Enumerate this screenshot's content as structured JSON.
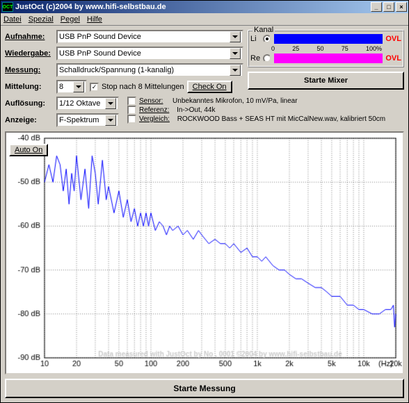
{
  "window": {
    "title": "JustOct (c)2004 by www.hifi-selbstbau.de"
  },
  "menu": {
    "items": [
      "Datei",
      "Spezial",
      "Pegel",
      "Hilfe"
    ]
  },
  "labels": {
    "aufnahme": "Aufnahme:",
    "wiedergabe": "Wiedergabe:",
    "messung": "Messung:",
    "mittelung": "Mittelung:",
    "aufloesung": "Auflösung:",
    "anzeige": "Anzeige:",
    "stopnach": "Stop nach 8 Mittelungen",
    "checkon": "Check On",
    "kanal": "Kanal",
    "li": "Li",
    "re": "Re",
    "ovl": "OVL",
    "ticks": [
      "0",
      "25",
      "50",
      "75",
      "100%"
    ],
    "starte_mixer": "Starte Mixer",
    "starte_messung": "Starte Messung",
    "auto_on": "Auto On",
    "sensor": "Sensor:",
    "sensor_v": "Unbekanntes Mikrofon, 10 mV/Pa, linear",
    "referenz": "Referenz:",
    "referenz_v": "In->Out, 44k",
    "vergleich": "Vergleich:",
    "vergleich_v": "ROCKWOOD Bass + SEAS HT mit MicCalNew.wav, kalibriert 50cm"
  },
  "combos": {
    "aufnahme": "USB PnP Sound Device",
    "wiedergabe": "USB PnP Sound Device",
    "messung": "Schalldruck/Spannung (1-kanalig)",
    "mittelung": "8",
    "aufloesung": "1/12 Oktave",
    "anzeige": "F-Spektrum"
  },
  "checks": {
    "stopnach": true
  },
  "kanal": {
    "li_selected": true,
    "li_color": "#0000ff",
    "li_pct": 100,
    "re_color": "#ff00ff",
    "re_pct": 100
  },
  "chart": {
    "type": "line",
    "bg": "#ffffff",
    "grid_color": "#000000",
    "grid_dash": [
      1,
      2
    ],
    "axis_color": "#000000",
    "line_color": "#0000ff",
    "line_width": 1,
    "watermark": "Data measured with JustOct by No , 0001 ©2004 by www.hifi-selbstbau.de",
    "watermark_color": "#cccccc",
    "y": {
      "min": -90,
      "max": -40,
      "step": 10,
      "unit": "dB"
    },
    "x": {
      "log": true,
      "min": 10,
      "max": 20000,
      "ticks": [
        10,
        20,
        50,
        100,
        200,
        500,
        1000,
        2000,
        5000,
        10000,
        20000
      ],
      "ticklabels": [
        "10",
        "20",
        "50",
        "100",
        "200",
        "500",
        "1k",
        "2k",
        "5k",
        "10k",
        "20k"
      ],
      "minor": [
        10,
        20,
        30,
        40,
        50,
        60,
        70,
        80,
        90,
        100,
        200,
        300,
        400,
        500,
        600,
        700,
        800,
        900,
        1000,
        2000,
        3000,
        4000,
        5000,
        6000,
        7000,
        8000,
        9000,
        10000,
        20000
      ],
      "unit": "(Hz)"
    },
    "data": [
      [
        10,
        -50
      ],
      [
        11,
        -46
      ],
      [
        12,
        -50
      ],
      [
        13,
        -44
      ],
      [
        14,
        -46
      ],
      [
        15,
        -52
      ],
      [
        16,
        -47
      ],
      [
        17,
        -55
      ],
      [
        18,
        -48
      ],
      [
        19,
        -52
      ],
      [
        20,
        -44
      ],
      [
        22,
        -54
      ],
      [
        24,
        -47
      ],
      [
        26,
        -56
      ],
      [
        28,
        -44
      ],
      [
        30,
        -48
      ],
      [
        32,
        -55
      ],
      [
        35,
        -45
      ],
      [
        38,
        -54
      ],
      [
        40,
        -51
      ],
      [
        45,
        -57
      ],
      [
        50,
        -52
      ],
      [
        55,
        -58
      ],
      [
        60,
        -54
      ],
      [
        65,
        -59
      ],
      [
        70,
        -56
      ],
      [
        75,
        -60
      ],
      [
        80,
        -57
      ],
      [
        85,
        -60
      ],
      [
        90,
        -57
      ],
      [
        95,
        -60
      ],
      [
        100,
        -57
      ],
      [
        110,
        -61
      ],
      [
        120,
        -59
      ],
      [
        130,
        -60
      ],
      [
        140,
        -62
      ],
      [
        150,
        -60
      ],
      [
        160,
        -61
      ],
      [
        180,
        -60
      ],
      [
        200,
        -62
      ],
      [
        220,
        -61
      ],
      [
        250,
        -63
      ],
      [
        280,
        -61
      ],
      [
        300,
        -62
      ],
      [
        350,
        -64
      ],
      [
        400,
        -63
      ],
      [
        450,
        -64
      ],
      [
        500,
        -64
      ],
      [
        550,
        -65
      ],
      [
        600,
        -64
      ],
      [
        700,
        -66
      ],
      [
        800,
        -65
      ],
      [
        900,
        -67
      ],
      [
        1000,
        -67
      ],
      [
        1100,
        -68
      ],
      [
        1200,
        -67
      ],
      [
        1400,
        -69
      ],
      [
        1600,
        -70
      ],
      [
        1800,
        -70
      ],
      [
        2000,
        -71
      ],
      [
        2300,
        -72
      ],
      [
        2600,
        -72
      ],
      [
        3000,
        -73
      ],
      [
        3500,
        -74
      ],
      [
        4000,
        -74
      ],
      [
        4500,
        -75
      ],
      [
        5000,
        -76
      ],
      [
        6000,
        -76
      ],
      [
        7000,
        -78
      ],
      [
        8000,
        -78
      ],
      [
        9000,
        -79
      ],
      [
        10000,
        -79
      ],
      [
        12000,
        -80
      ],
      [
        14000,
        -80
      ],
      [
        16000,
        -79
      ],
      [
        18000,
        -79
      ],
      [
        19000,
        -78
      ],
      [
        19500,
        -83
      ],
      [
        20000,
        -80
      ]
    ]
  }
}
